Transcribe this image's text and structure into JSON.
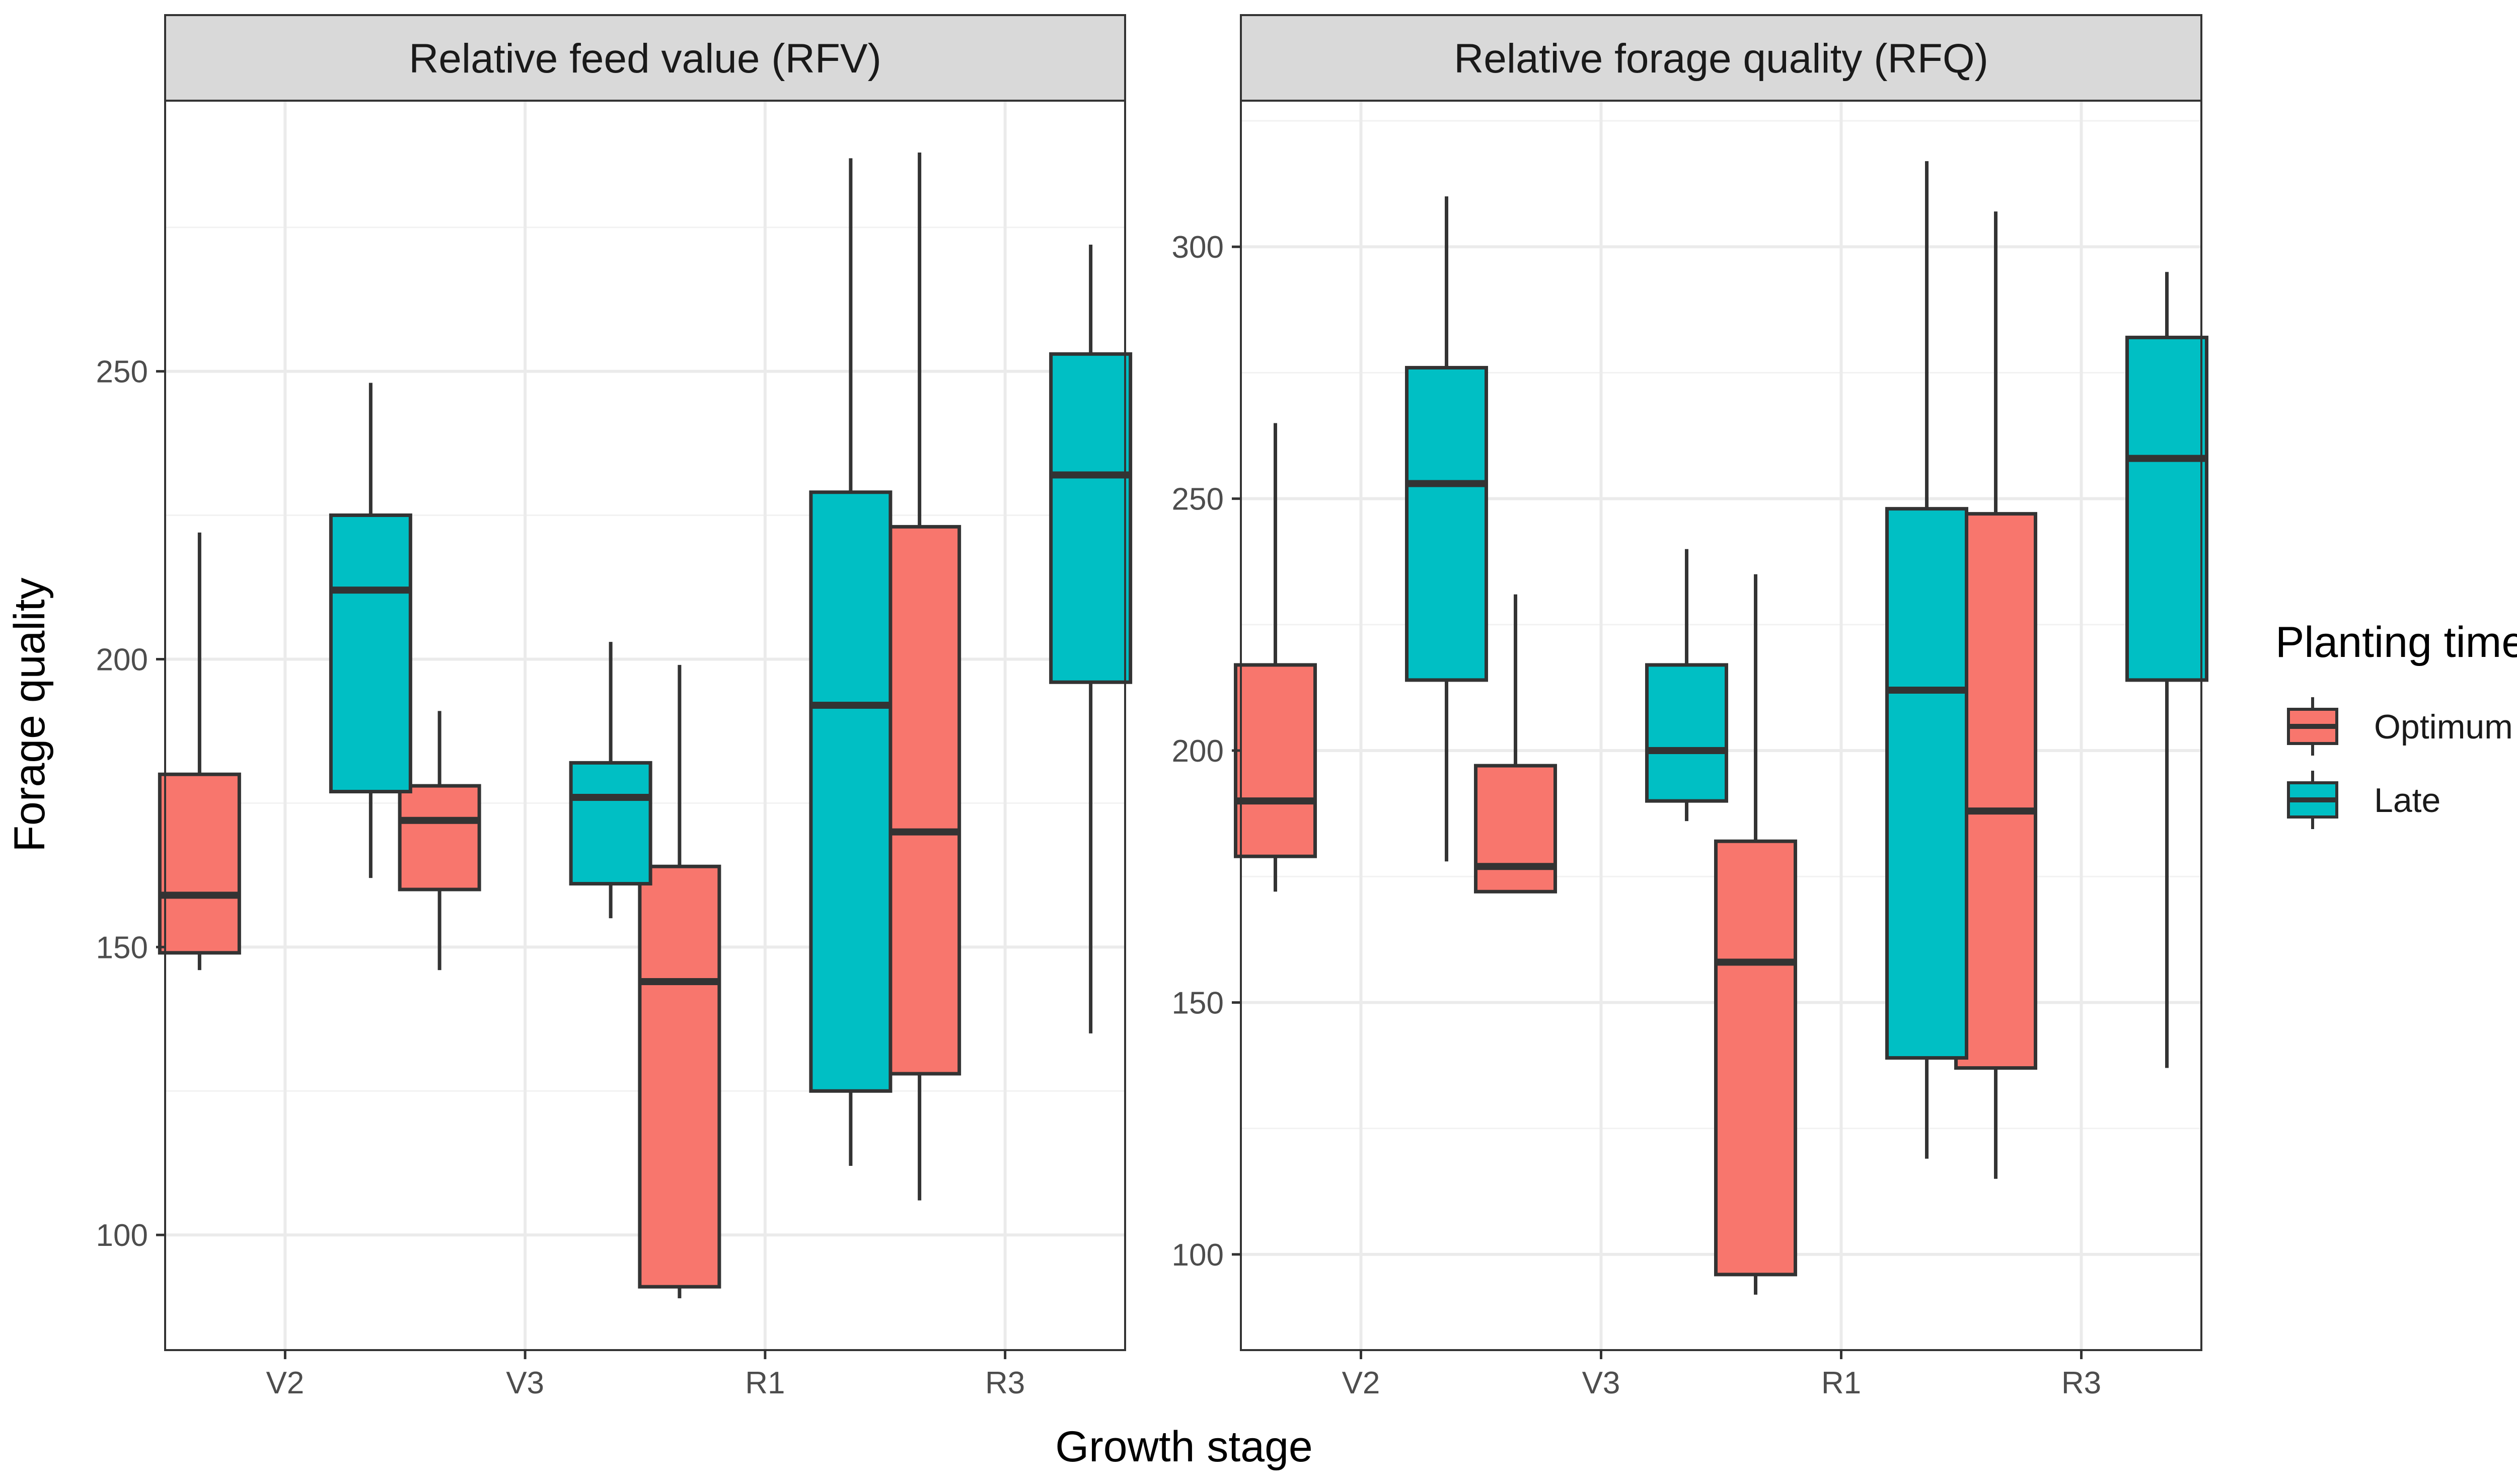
{
  "chart_data": {
    "type": "boxplot",
    "xlabel": "Growth stage",
    "ylabel": "Forage quality",
    "categories": [
      "V2",
      "V3",
      "R1",
      "R3"
    ],
    "legend": {
      "title": "Planting time",
      "position": "right",
      "entries": [
        {
          "name": "Optimum",
          "color": "#F8766D"
        },
        {
          "name": "Late",
          "color": "#00BFC4"
        }
      ]
    },
    "panels": [
      {
        "title": "Relative feed value (RFV)",
        "ylim": [
          80,
          297
        ],
        "yticks": [
          100,
          150,
          200,
          250
        ],
        "series": [
          {
            "name": "Optimum",
            "boxes": [
              {
                "category": "V2",
                "min": 146,
                "q1": 149,
                "median": 159,
                "q3": 180,
                "max": 222
              },
              {
                "category": "V3",
                "min": 146,
                "q1": 160,
                "median": 172,
                "q3": 178,
                "max": 191
              },
              {
                "category": "R1",
                "min": 89,
                "q1": 91,
                "median": 144,
                "q3": 164,
                "max": 199
              },
              {
                "category": "R3",
                "min": 106,
                "q1": 128,
                "median": 170,
                "q3": 223,
                "max": 288
              }
            ]
          },
          {
            "name": "Late",
            "boxes": [
              {
                "category": "V2",
                "min": 162,
                "q1": 177,
                "median": 212,
                "q3": 225,
                "max": 248
              },
              {
                "category": "V3",
                "min": 155,
                "q1": 161,
                "median": 176,
                "q3": 182,
                "max": 203
              },
              {
                "category": "R1",
                "min": 112,
                "q1": 125,
                "median": 192,
                "q3": 229,
                "max": 287
              },
              {
                "category": "R3",
                "min": 135,
                "q1": 196,
                "median": 232,
                "q3": 253,
                "max": 272
              }
            ]
          }
        ]
      },
      {
        "title": "Relative forage quality (RFQ)",
        "ylim": [
          81,
          329
        ],
        "yticks": [
          100,
          150,
          200,
          250,
          300
        ],
        "series": [
          {
            "name": "Optimum",
            "boxes": [
              {
                "category": "V2",
                "min": 172,
                "q1": 179,
                "median": 190,
                "q3": 217,
                "max": 265
              },
              {
                "category": "V3",
                "min": 172,
                "q1": 172,
                "median": 177,
                "q3": 197,
                "max": 231
              },
              {
                "category": "R1",
                "min": 92,
                "q1": 96,
                "median": 158,
                "q3": 182,
                "max": 235
              },
              {
                "category": "R3",
                "min": 115,
                "q1": 137,
                "median": 188,
                "q3": 247,
                "max": 307
              }
            ]
          },
          {
            "name": "Late",
            "boxes": [
              {
                "category": "V2",
                "min": 178,
                "q1": 214,
                "median": 253,
                "q3": 276,
                "max": 310
              },
              {
                "category": "V3",
                "min": 186,
                "q1": 190,
                "median": 200,
                "q3": 217,
                "max": 240
              },
              {
                "category": "R1",
                "min": 119,
                "q1": 139,
                "median": 212,
                "q3": 248,
                "max": 317
              },
              {
                "category": "R3",
                "min": 137,
                "q1": 214,
                "median": 258,
                "q3": 282,
                "max": 295
              }
            ]
          }
        ]
      }
    ]
  }
}
